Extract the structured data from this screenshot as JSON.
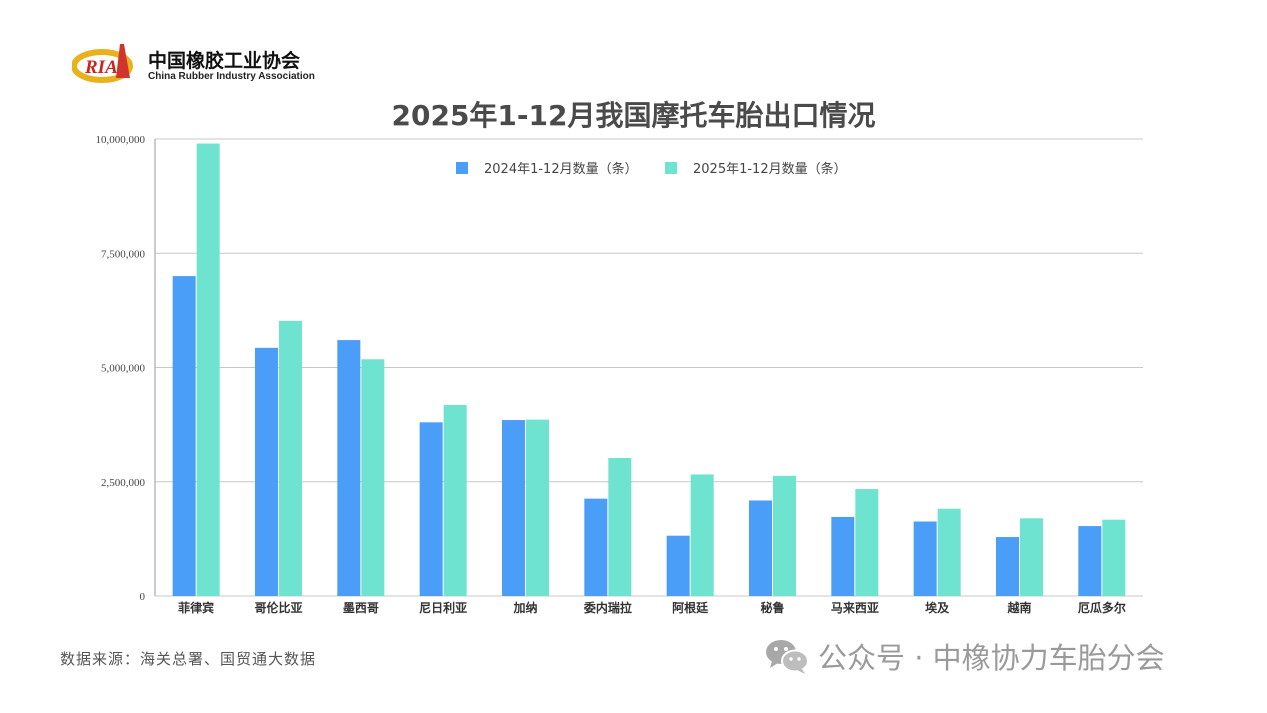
{
  "header": {
    "logo_mark": "RIA",
    "org_name_cn": "中国橡胶工业协会",
    "org_name_en": "China Rubber Industry Association"
  },
  "footer": {
    "source": "数据来源：海关总署、国贸通大数据",
    "watermark": "公众号 · 中橡协力车胎分会",
    "watermark_icon": "wechat-icon"
  },
  "colors": {
    "series_2024": "#4a9ef7",
    "series_2025": "#6ee3cf",
    "grid": "#c8c8c8"
  },
  "chart_data": {
    "type": "bar",
    "title": "2025年1-12月我国摩托车胎出口情况",
    "categories": [
      "菲律宾",
      "哥伦比亚",
      "墨西哥",
      "尼日利亚",
      "加纳",
      "委内瑞拉",
      "阿根廷",
      "秘鲁",
      "马来西亚",
      "埃及",
      "越南",
      "厄瓜多尔"
    ],
    "series": [
      {
        "name": "2024年1-12月数量（条）",
        "values": [
          7000000,
          5430000,
          5600000,
          3800000,
          3850000,
          2130000,
          1320000,
          2090000,
          1730000,
          1630000,
          1290000,
          1530000
        ]
      },
      {
        "name": "2025年1-12月数量（条）",
        "values": [
          9900000,
          6020000,
          5180000,
          4180000,
          3860000,
          3020000,
          2660000,
          2630000,
          2340000,
          1910000,
          1700000,
          1670000
        ]
      }
    ],
    "ylim": [
      0,
      10000000
    ],
    "yticks": [
      "0",
      "2,500,000",
      "5,000,000",
      "7,500,000",
      "10,000,000"
    ],
    "ytick_values": [
      0,
      2500000,
      5000000,
      7500000,
      10000000
    ],
    "grid": true,
    "legend_position": "top"
  }
}
